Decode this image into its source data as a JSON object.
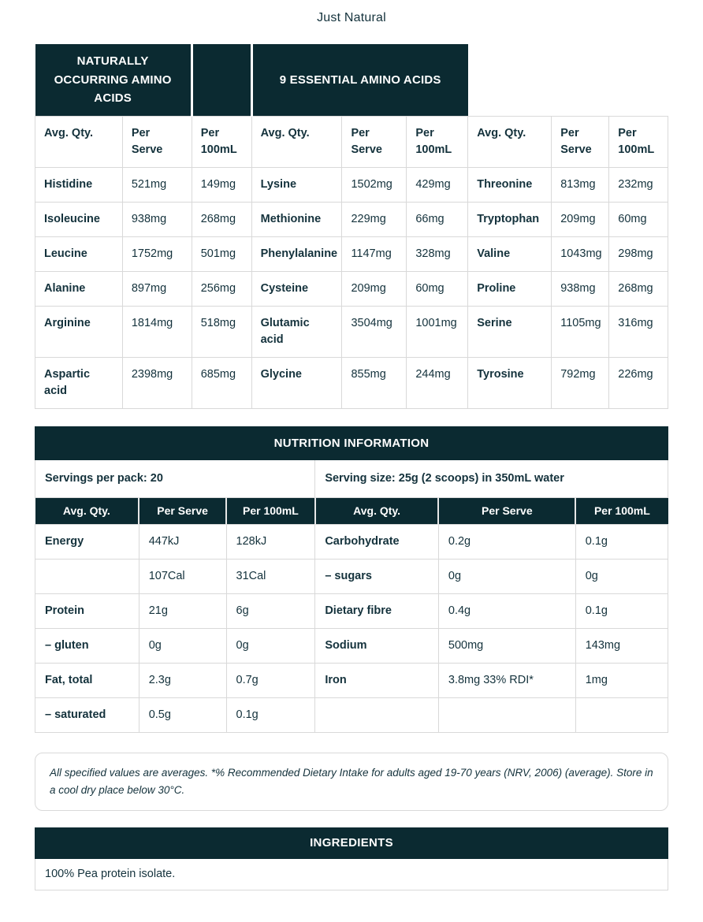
{
  "page": {
    "title": "Just Natural"
  },
  "colors": {
    "dark_teal_header": "#0b2a31",
    "body_text": "#14323c",
    "table_border": "#d9d9d9",
    "header_text": "#ffffff"
  },
  "amino_table": {
    "group_header_left": "NATURALLY OCCURRING AMINO ACIDS",
    "group_header_right": "9 ESSENTIAL AMINO ACIDS",
    "column_headers": [
      "Avg. Qty.",
      "Per Serve",
      "Per 100mL",
      "Avg. Qty.",
      "Per Serve",
      "Per 100mL",
      "Avg. Qty.",
      "Per Serve",
      "Per 100mL"
    ],
    "rows": [
      [
        "Histidine",
        "521mg",
        "149mg",
        "Lysine",
        "1502mg",
        "429mg",
        "Threonine",
        "813mg",
        "232mg"
      ],
      [
        "Isoleucine",
        "938mg",
        "268mg",
        "Methionine",
        "229mg",
        "66mg",
        "Tryptophan",
        "209mg",
        "60mg"
      ],
      [
        "Leucine",
        "1752mg",
        "501mg",
        "Phenylalanine",
        "1147mg",
        "328mg",
        "Valine",
        "1043mg",
        "298mg"
      ],
      [
        "Alanine",
        "897mg",
        "256mg",
        "Cysteine",
        "209mg",
        "60mg",
        "Proline",
        "938mg",
        "268mg"
      ],
      [
        "Arginine",
        "1814mg",
        "518mg",
        "Glutamic acid",
        "3504mg",
        "1001mg",
        "Serine",
        "1105mg",
        "316mg"
      ],
      [
        "Aspartic acid",
        "2398mg",
        "685mg",
        "Glycine",
        "855mg",
        "244mg",
        "Tyrosine",
        "792mg",
        "226mg"
      ]
    ]
  },
  "nutrition_table": {
    "title": "NUTRITION INFORMATION",
    "servings_per_pack": "Servings per pack: 20",
    "serving_size": "Serving size: 25g (2 scoops) in 350mL water",
    "column_headers": [
      "Avg. Qty.",
      "Per Serve",
      "Per 100mL",
      "Avg. Qty.",
      "Per Serve",
      "Per 100mL"
    ],
    "rows": [
      [
        "Energy",
        "447kJ",
        "128kJ",
        "Carbohydrate",
        "0.2g",
        "0.1g"
      ],
      [
        "",
        "107Cal",
        "31Cal",
        "– sugars",
        "0g",
        "0g"
      ],
      [
        "Protein",
        "21g",
        "6g",
        "Dietary fibre",
        "0.4g",
        "0.1g"
      ],
      [
        "– gluten",
        "0g",
        "0g",
        "Sodium",
        "500mg",
        "143mg"
      ],
      [
        "Fat, total",
        "2.3g",
        "0.7g",
        "Iron",
        "3.8mg 33% RDI*",
        "1mg"
      ],
      [
        "– saturated",
        "0.5g",
        "0.1g",
        "",
        "",
        ""
      ]
    ]
  },
  "footnote": {
    "text": "All specified values are averages. *% Recommended Dietary Intake for adults aged 19-70 years (NRV, 2006) (average). Store in a cool dry place below 30°C."
  },
  "ingredients": {
    "title": "INGREDIENTS",
    "text": "100% Pea protein isolate."
  }
}
